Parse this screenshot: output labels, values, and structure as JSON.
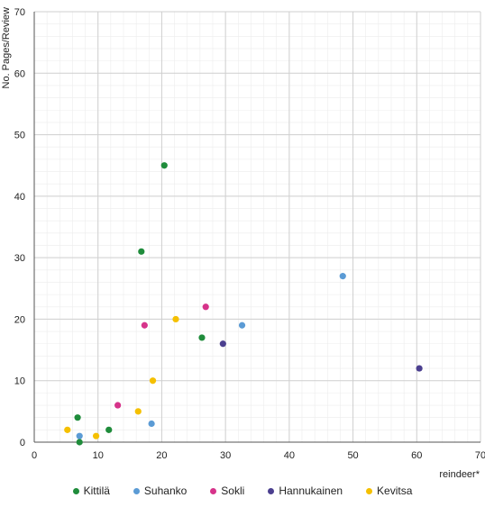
{
  "chart_data": {
    "type": "scatter",
    "xlabel": "reindeer*",
    "ylabel": "No. Pages/Review",
    "xlim": [
      0,
      70
    ],
    "ylim": [
      0,
      70
    ],
    "xticks": [
      0,
      10,
      20,
      30,
      40,
      50,
      60,
      70
    ],
    "yticks": [
      0,
      10,
      20,
      30,
      40,
      50,
      60,
      70
    ],
    "grid": true,
    "legend_position": "bottom",
    "series": [
      {
        "name": "Kittilä",
        "color": "#1f8c3b",
        "points": [
          [
            6.8,
            4
          ],
          [
            7.1,
            0
          ],
          [
            11.7,
            2
          ],
          [
            16.8,
            31
          ],
          [
            20.4,
            45
          ],
          [
            26.3,
            17
          ]
        ]
      },
      {
        "name": "Suhanko",
        "color": "#5b9bd5",
        "points": [
          [
            7.1,
            1
          ],
          [
            18.4,
            3
          ],
          [
            32.6,
            19
          ],
          [
            48.4,
            27
          ]
        ]
      },
      {
        "name": "Sokli",
        "color": "#d6338a",
        "points": [
          [
            13.1,
            6
          ],
          [
            17.3,
            19
          ],
          [
            26.9,
            22
          ]
        ]
      },
      {
        "name": "Hannukainen",
        "color": "#4b3f8f",
        "points": [
          [
            29.6,
            16
          ],
          [
            60.4,
            12
          ]
        ]
      },
      {
        "name": "Kevitsa",
        "color": "#f5c000",
        "points": [
          [
            5.2,
            2
          ],
          [
            9.7,
            1
          ],
          [
            16.3,
            5
          ],
          [
            18.6,
            10
          ],
          [
            22.2,
            20
          ]
        ]
      }
    ]
  }
}
